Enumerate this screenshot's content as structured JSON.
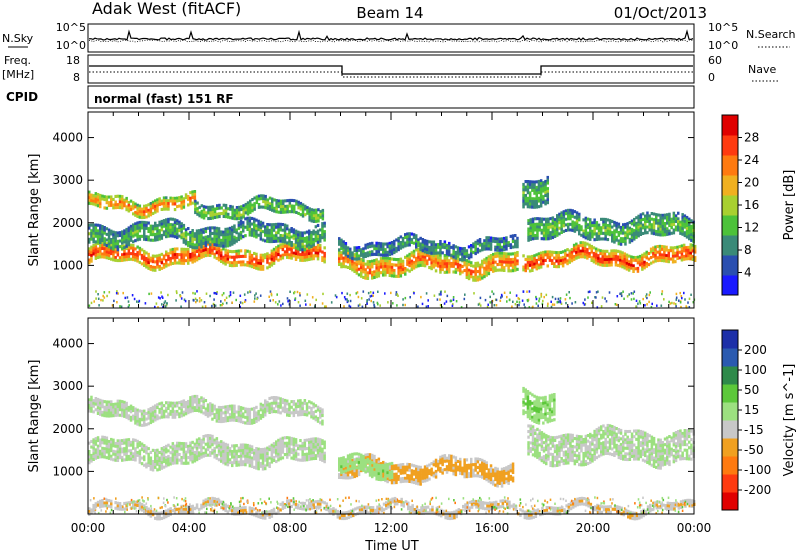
{
  "header": {
    "title_left": "Adak West (fitACF)",
    "title_center": "Beam 14",
    "title_right": "01/Oct/2013"
  },
  "noise_panel": {
    "label_left": "N.Sky",
    "label_right": "N.Search",
    "tick_top": "10^5",
    "tick_bottom": "10^0",
    "tick_top_right": "10^5",
    "tick_bottom_right": "10^0"
  },
  "freq_panel": {
    "label_left_line1": "Freq.",
    "label_left_line2": "[MHz]",
    "label_right": "Nave",
    "tick_left_top": "18",
    "tick_left_bottom": "8",
    "tick_right_top": "60",
    "tick_right_bottom": "0"
  },
  "cpid_panel": {
    "label": "CPID",
    "text": "normal (fast) 151 RF"
  },
  "axes": {
    "xlabel": "Time UT",
    "ylabel": "Slant Range [km]",
    "xticks": [
      "00:00",
      "04:00",
      "08:00",
      "12:00",
      "16:00",
      "20:00",
      "00:00"
    ],
    "yticks": [
      "1000",
      "2000",
      "3000",
      "4000"
    ]
  },
  "colorbars": {
    "power": {
      "label": "Power [dB]",
      "ticks": [
        "4",
        "8",
        "12",
        "16",
        "20",
        "24",
        "28"
      ],
      "colors": [
        "#1a1aff",
        "#2a4fb0",
        "#3a8a78",
        "#4cc23a",
        "#a8d030",
        "#f0b020",
        "#ff7a10",
        "#ff3a10",
        "#e00000"
      ]
    },
    "velocity": {
      "label": "Velocity [m s^-1]",
      "ticks": [
        "200",
        "100",
        "50",
        "15",
        "-15",
        "-50",
        "-100",
        "-200"
      ],
      "colors": [
        "#1c2fa8",
        "#2a5ab0",
        "#2e8a4a",
        "#5cc83a",
        "#9ce080",
        "#c8c8c8",
        "#f0a020",
        "#ff7a10",
        "#ff3a10",
        "#e00000"
      ]
    }
  },
  "chart_data": [
    {
      "type": "heatmap",
      "title": "Power [dB]",
      "xlabel": "Time UT",
      "ylabel": "Slant Range [km]",
      "x_range_hours": [
        0,
        24
      ],
      "ylim": [
        0,
        4600
      ],
      "color_range": [
        0,
        30
      ],
      "bands": [
        {
          "t_start": 0.0,
          "t_end": 9.4,
          "r_center": 1250,
          "r_width": 350,
          "value": 27
        },
        {
          "t_start": 0.0,
          "t_end": 4.2,
          "r_center": 2450,
          "r_width": 300,
          "value": 23
        },
        {
          "t_start": 4.2,
          "t_end": 9.3,
          "r_center": 2350,
          "r_width": 320,
          "value": 14
        },
        {
          "t_start": 0.0,
          "t_end": 9.4,
          "r_center": 1750,
          "r_width": 450,
          "value": 12
        },
        {
          "t_start": 9.9,
          "t_end": 17.0,
          "r_center": 1050,
          "r_width": 420,
          "value": 24
        },
        {
          "t_start": 9.9,
          "t_end": 17.0,
          "r_center": 1450,
          "r_width": 300,
          "value": 10
        },
        {
          "t_start": 17.2,
          "t_end": 24.0,
          "r_center": 1200,
          "r_width": 380,
          "value": 26
        },
        {
          "t_start": 17.4,
          "t_end": 24.0,
          "r_center": 1900,
          "r_width": 500,
          "value": 13
        },
        {
          "t_start": 17.2,
          "t_end": 18.2,
          "r_center": 2700,
          "r_width": 600,
          "value": 12
        }
      ]
    },
    {
      "type": "heatmap",
      "title": "Velocity [m s^-1]",
      "xlabel": "Time UT",
      "ylabel": "Slant Range [km]",
      "x_range_hours": [
        0,
        24
      ],
      "ylim": [
        0,
        4600
      ],
      "color_range": [
        -200,
        200
      ],
      "bands": [
        {
          "t_start": 0.0,
          "t_end": 9.4,
          "r_center": 1450,
          "r_width": 500,
          "value": 0
        },
        {
          "t_start": 0.0,
          "t_end": 9.3,
          "r_center": 2450,
          "r_width": 350,
          "value": 0
        },
        {
          "t_start": 9.9,
          "t_end": 16.8,
          "r_center": 1050,
          "r_width": 420,
          "value": -60
        },
        {
          "t_start": 9.9,
          "t_end": 12.0,
          "r_center": 1100,
          "r_width": 380,
          "value": 30
        },
        {
          "t_start": 17.4,
          "t_end": 24.0,
          "r_center": 1600,
          "r_width": 700,
          "value": 0
        },
        {
          "t_start": 17.2,
          "t_end": 18.5,
          "r_center": 2600,
          "r_width": 600,
          "value": 40
        },
        {
          "t_start": 0.0,
          "t_end": 24.0,
          "r_center": 150,
          "r_width": 150,
          "value": -40
        }
      ]
    }
  ]
}
